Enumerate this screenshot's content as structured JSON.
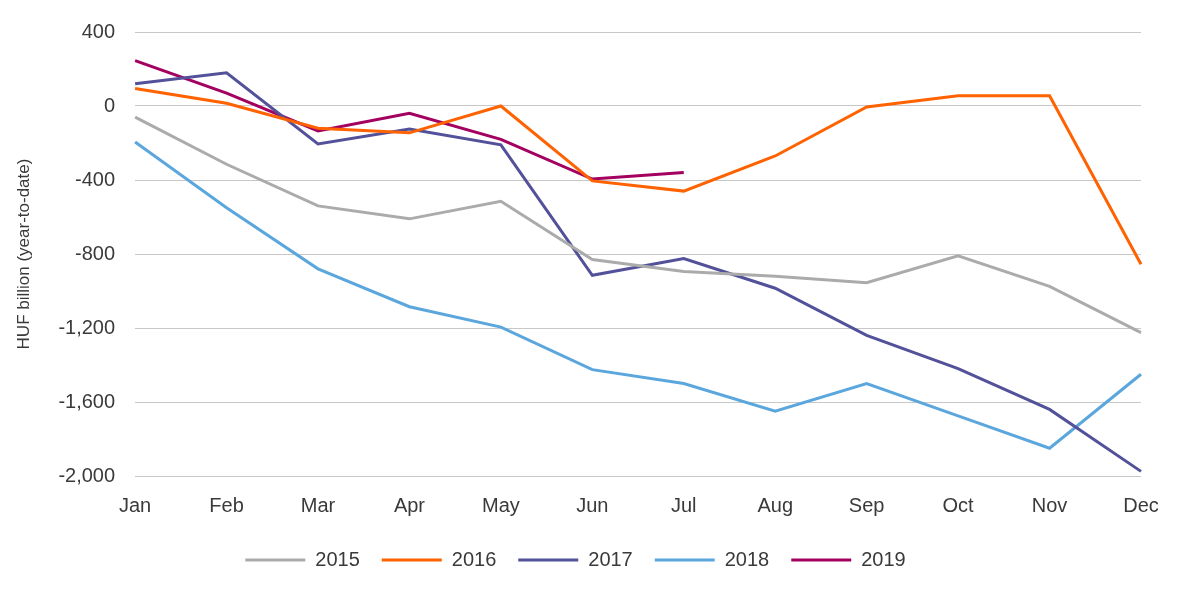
{
  "chart_data": {
    "type": "line",
    "y_label": "HUF billion (year-to-date)",
    "categories": [
      "Jan",
      "Feb",
      "Mar",
      "Apr",
      "May",
      "Jun",
      "Jul",
      "Aug",
      "Sep",
      "Oct",
      "Nov",
      "Dec"
    ],
    "series": [
      {
        "name": "2015",
        "color": "#ababab",
        "values": [
          -60,
          -315,
          -540,
          -610,
          -515,
          -830,
          -895,
          -920,
          -955,
          -810,
          -975,
          -1225
        ]
      },
      {
        "name": "2016",
        "color": "#ff6200",
        "values": [
          95,
          15,
          -120,
          -145,
          0,
          -405,
          -460,
          -270,
          -5,
          55,
          55,
          -855
        ]
      },
      {
        "name": "2017",
        "color": "#525199",
        "values": [
          120,
          180,
          -205,
          -125,
          -210,
          -915,
          -825,
          -985,
          -1240,
          -1420,
          -1640,
          -1975
        ]
      },
      {
        "name": "2018",
        "color": "#5ba7dd",
        "values": [
          -195,
          -550,
          -880,
          -1085,
          -1195,
          -1425,
          -1500,
          -1650,
          -1500,
          -1675,
          -1850,
          -1450
        ]
      },
      {
        "name": "2019",
        "color": "#a3005f",
        "values": [
          245,
          70,
          -135,
          -40,
          -180,
          -395,
          -360,
          null,
          null,
          null,
          null,
          null
        ]
      }
    ],
    "ylim": [
      -2000,
      400
    ],
    "yticks": [
      {
        "value": -2000,
        "label": "-2,000"
      },
      {
        "value": -1600,
        "label": "-1,600"
      },
      {
        "value": -1200,
        "label": "-1,200"
      },
      -800,
      -400,
      0,
      400
    ],
    "grid": true,
    "legend": "bottom"
  }
}
